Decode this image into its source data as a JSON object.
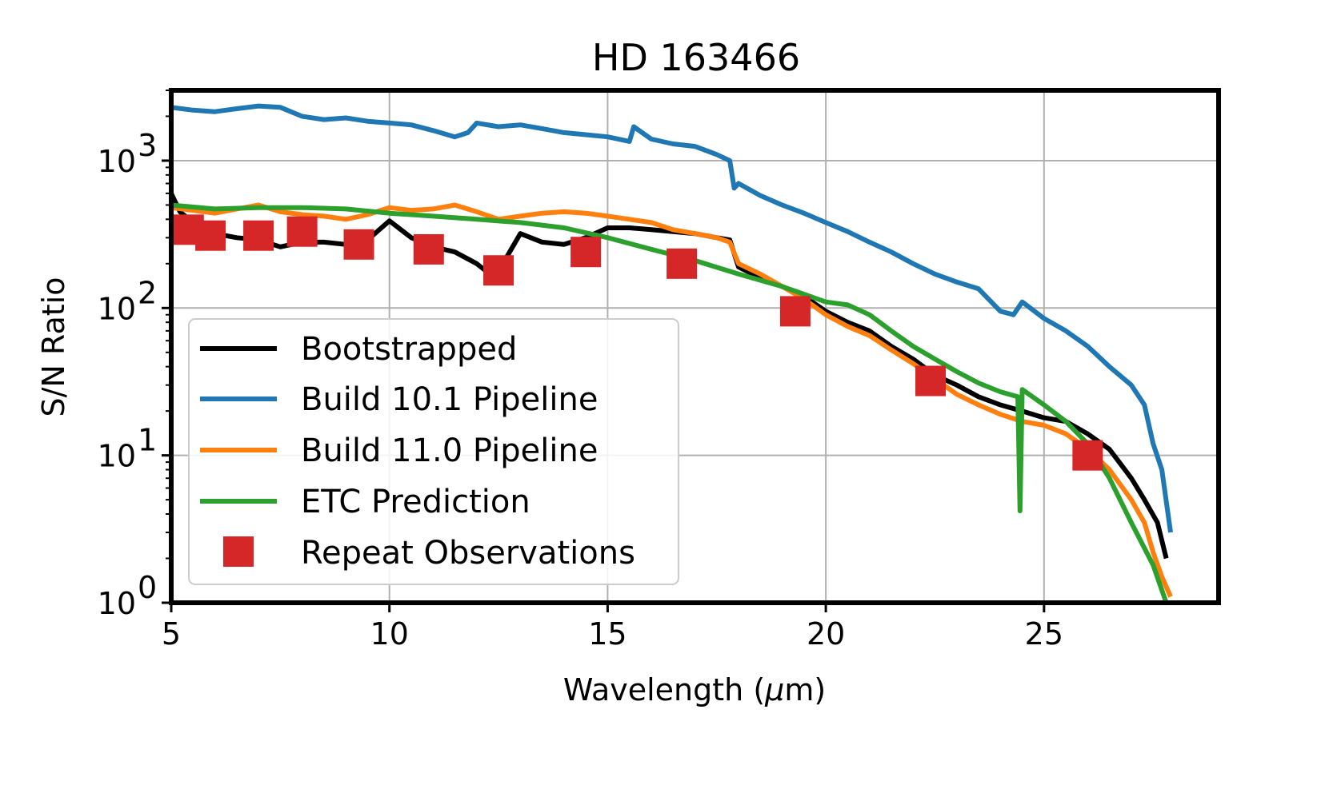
{
  "chart_data": {
    "type": "line",
    "title": "HD 163466",
    "xlabel_prefix": "Wavelength (",
    "xlabel_mu": "μ",
    "xlabel_suffix": "m)",
    "ylabel": "S/N Ratio",
    "xlim": [
      5,
      29
    ],
    "ylim": [
      1,
      3000
    ],
    "yscale": "log",
    "grid": true,
    "legend_loc": "lower left",
    "x_ticks": [
      {
        "value": 5,
        "label": "5"
      },
      {
        "value": 10,
        "label": "10"
      },
      {
        "value": 15,
        "label": "15"
      },
      {
        "value": 20,
        "label": "20"
      },
      {
        "value": 25,
        "label": "25"
      }
    ],
    "y_ticks": [
      {
        "value": 1,
        "base": "10",
        "exp": "0"
      },
      {
        "value": 10,
        "base": "10",
        "exp": "1"
      },
      {
        "value": 100,
        "base": "10",
        "exp": "2"
      },
      {
        "value": 1000,
        "base": "10",
        "exp": "3"
      }
    ],
    "colors": {
      "bootstrapped": "#000000",
      "build101": "#1f77b4",
      "build110": "#ff7f0e",
      "etc": "#2ca02c",
      "repeat": "#d62728"
    },
    "series": [
      {
        "key": "bootstrapped",
        "name": "Bootstrapped",
        "x": [
          5.0,
          5.2,
          5.5,
          6.0,
          6.5,
          7.0,
          7.5,
          8.0,
          8.5,
          9.0,
          9.5,
          10.0,
          10.5,
          11.0,
          11.5,
          12.0,
          12.3,
          12.6,
          13.0,
          13.5,
          14.0,
          14.5,
          15.0,
          15.5,
          16.0,
          16.5,
          17.0,
          17.5,
          17.8,
          18.0,
          18.5,
          19.0,
          19.5,
          20.0,
          20.5,
          21.0,
          21.5,
          22.0,
          22.5,
          23.0,
          23.5,
          24.0,
          24.5,
          25.0,
          25.5,
          26.0,
          26.5,
          27.0,
          27.3,
          27.6,
          27.8
        ],
        "y": [
          600,
          450,
          380,
          320,
          300,
          290,
          260,
          280,
          280,
          270,
          290,
          390,
          300,
          260,
          240,
          200,
          170,
          200,
          320,
          280,
          270,
          300,
          350,
          350,
          340,
          330,
          320,
          300,
          290,
          190,
          160,
          140,
          120,
          95,
          80,
          70,
          55,
          45,
          35,
          30,
          25,
          22,
          20,
          18,
          17,
          14,
          11,
          7,
          5,
          3.5,
          2.0
        ]
      },
      {
        "key": "build101",
        "name": "Build 10.1 Pipeline",
        "x": [
          5.0,
          5.5,
          6.0,
          6.5,
          7.0,
          7.5,
          8.0,
          8.5,
          9.0,
          9.5,
          10.0,
          10.5,
          11.0,
          11.5,
          11.8,
          12.0,
          12.5,
          13.0,
          13.5,
          14.0,
          14.5,
          15.0,
          15.5,
          15.6,
          16.0,
          16.5,
          17.0,
          17.5,
          17.8,
          17.9,
          18.0,
          18.5,
          19.0,
          19.5,
          20.0,
          20.5,
          21.0,
          21.5,
          22.0,
          22.5,
          23.0,
          23.5,
          24.0,
          24.3,
          24.5,
          25.0,
          25.5,
          26.0,
          26.5,
          27.0,
          27.3,
          27.5,
          27.7,
          27.9
        ],
        "y": [
          2300,
          2200,
          2150,
          2250,
          2350,
          2300,
          2000,
          1900,
          1950,
          1850,
          1800,
          1750,
          1600,
          1450,
          1550,
          1800,
          1700,
          1750,
          1650,
          1550,
          1500,
          1450,
          1350,
          1700,
          1400,
          1300,
          1250,
          1100,
          1000,
          650,
          700,
          580,
          500,
          440,
          380,
          330,
          280,
          240,
          200,
          170,
          150,
          135,
          95,
          90,
          110,
          85,
          70,
          55,
          40,
          30,
          22,
          12,
          8,
          3
        ]
      },
      {
        "key": "build110",
        "name": "Build 11.0 Pipeline",
        "x": [
          5.0,
          5.5,
          6.0,
          6.5,
          7.0,
          7.5,
          8.0,
          8.5,
          9.0,
          9.5,
          10.0,
          10.5,
          11.0,
          11.5,
          12.0,
          12.5,
          13.0,
          13.5,
          14.0,
          14.5,
          15.0,
          15.5,
          16.0,
          16.5,
          17.0,
          17.5,
          17.8,
          18.0,
          18.5,
          19.0,
          19.5,
          20.0,
          20.5,
          21.0,
          21.5,
          22.0,
          22.5,
          23.0,
          23.5,
          24.0,
          24.5,
          25.0,
          25.5,
          26.0,
          26.5,
          27.0,
          27.3,
          27.5,
          27.7,
          27.9
        ],
        "y": [
          480,
          460,
          440,
          470,
          500,
          450,
          430,
          420,
          400,
          430,
          480,
          460,
          470,
          500,
          450,
          400,
          420,
          440,
          450,
          440,
          420,
          400,
          380,
          340,
          320,
          300,
          280,
          200,
          170,
          140,
          115,
          90,
          75,
          65,
          52,
          42,
          33,
          26,
          22,
          19,
          17,
          16,
          14,
          11,
          8,
          5,
          3.5,
          2.2,
          1.5,
          1.1
        ]
      },
      {
        "key": "etc",
        "name": "ETC Prediction",
        "x": [
          5.0,
          6.0,
          7.0,
          8.0,
          9.0,
          10.0,
          11.0,
          12.0,
          13.0,
          14.0,
          15.0,
          16.0,
          17.0,
          18.0,
          19.0,
          20.0,
          20.5,
          21.0,
          21.5,
          22.0,
          22.5,
          23.0,
          23.5,
          24.0,
          24.4,
          24.45,
          24.5,
          25.0,
          25.5,
          26.0,
          26.5,
          27.0,
          27.5,
          27.8
        ],
        "y": [
          500,
          470,
          480,
          480,
          470,
          440,
          420,
          400,
          380,
          350,
          300,
          250,
          210,
          170,
          140,
          110,
          105,
          90,
          70,
          55,
          45,
          37,
          31,
          27,
          25,
          4.2,
          28,
          22,
          17,
          12,
          7,
          3.5,
          1.8,
          1.0
        ]
      }
    ],
    "repeat_observations": {
      "name": "Repeat Observations",
      "x": [
        5.4,
        5.9,
        7.0,
        8.0,
        9.3,
        10.9,
        12.5,
        14.5,
        16.7,
        19.3,
        22.4,
        26.0
      ],
      "y": [
        340,
        310,
        310,
        330,
        270,
        250,
        180,
        240,
        200,
        95,
        32,
        10
      ]
    }
  }
}
